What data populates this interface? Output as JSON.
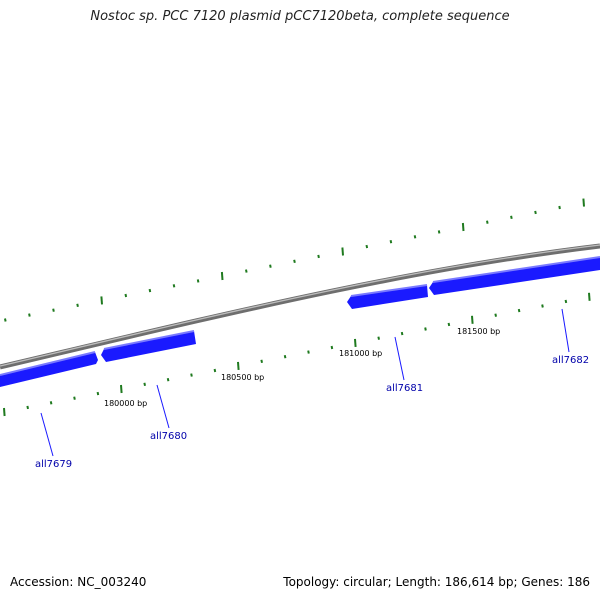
{
  "title": "Nostoc sp. PCC 7120 plasmid pCC7120beta, complete sequence",
  "footer": {
    "accession": "Accession: NC_003240",
    "summary": "Topology: circular; Length: 186,614 bp; Genes: 186"
  },
  "colors": {
    "gene": "#1a1aff",
    "gene_highlight": "#7a7aff",
    "backbone": "#888888",
    "tick": "#1f7a1f",
    "gene_label": "#0000aa",
    "pos_label": "#000000"
  },
  "chart_data": {
    "type": "genome_map",
    "genes": [
      {
        "name": "all7679"
      },
      {
        "name": "all7680"
      },
      {
        "name": "all7681"
      },
      {
        "name": "all7682"
      }
    ],
    "position_labels": [
      "180000 bp",
      "180500 bp",
      "181000 bp",
      "181500 bp"
    ]
  }
}
